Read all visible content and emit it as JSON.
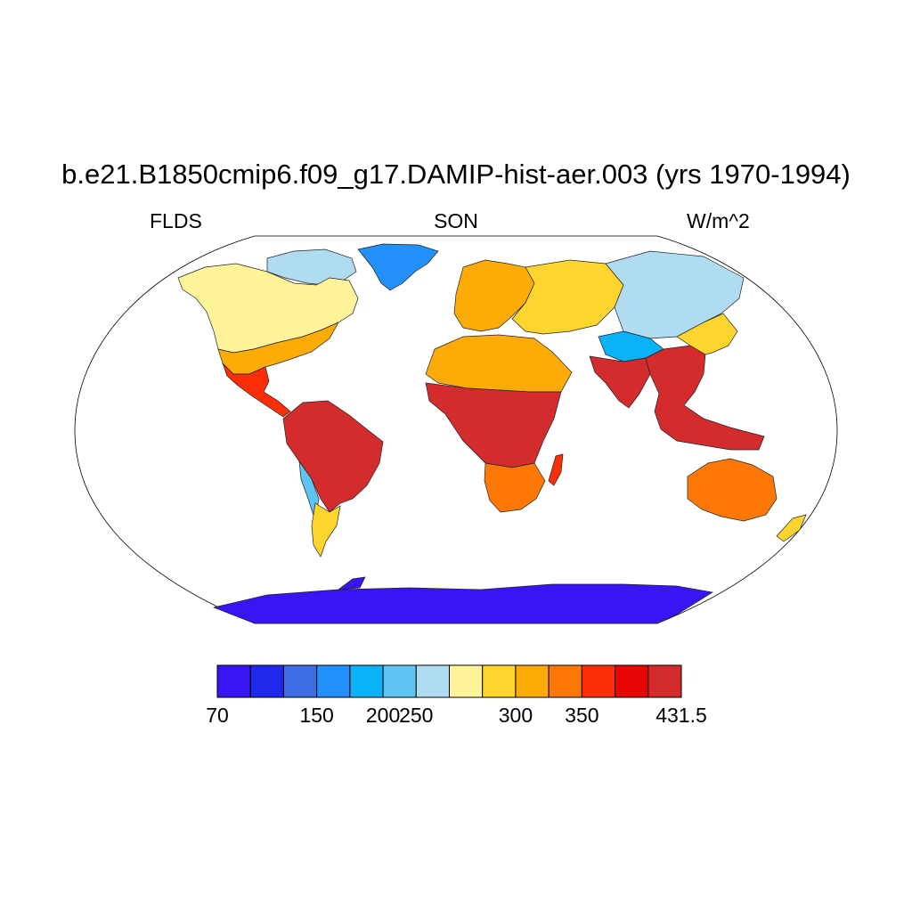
{
  "header": {
    "title": "b.e21.B1850cmip6.f09_g17.DAMIP-hist-aer.003 (yrs 1970-1994)",
    "left_label": "FLDS",
    "center_label": "SON",
    "right_label": "W/m^2"
  },
  "colorbar": {
    "colors": [
      "#3a14f2",
      "#1e29ec",
      "#3e6ce2",
      "#2290f8",
      "#0ab2f8",
      "#60c4f2",
      "#b0dcf2",
      "#fff49a",
      "#fed52e",
      "#fdab07",
      "#fd7807",
      "#fb2e08",
      "#e70505",
      "#d42c2c"
    ],
    "labels": [
      {
        "text": "70",
        "boundary": 0
      },
      {
        "text": "150",
        "boundary": 3
      },
      {
        "text": "200",
        "boundary": 5
      },
      {
        "text": "250",
        "boundary": 6
      },
      {
        "text": "300",
        "boundary": 9
      },
      {
        "text": "350",
        "boundary": 11
      },
      {
        "text": "431.5",
        "boundary": 14
      }
    ]
  },
  "map": {
    "projection": "robinson",
    "ocean_fill": "#ffffff",
    "regions": [
      {
        "name": "greenland",
        "color": "#2290f8"
      },
      {
        "name": "arctic-canada",
        "color": "#b0dcf2"
      },
      {
        "name": "north-america",
        "color": "#fff49a"
      },
      {
        "name": "usa-south",
        "color": "#fdab07"
      },
      {
        "name": "central-america",
        "color": "#fb2e08"
      },
      {
        "name": "south-america",
        "color": "#d42c2c"
      },
      {
        "name": "andes",
        "color": "#60c4f2"
      },
      {
        "name": "patagonia",
        "color": "#fed52e"
      },
      {
        "name": "europe",
        "color": "#fdab07"
      },
      {
        "name": "siberia",
        "color": "#b0dcf2"
      },
      {
        "name": "russia-west",
        "color": "#fed52e"
      },
      {
        "name": "tibet",
        "color": "#0ab2f8"
      },
      {
        "name": "africa-north",
        "color": "#fdab07"
      },
      {
        "name": "africa-central",
        "color": "#d42c2c"
      },
      {
        "name": "africa-south",
        "color": "#fd7807"
      },
      {
        "name": "india",
        "color": "#d42c2c"
      },
      {
        "name": "southeast-asia",
        "color": "#d42c2c"
      },
      {
        "name": "australia",
        "color": "#fd7807"
      },
      {
        "name": "antarctica",
        "color": "#3a14f2"
      }
    ]
  }
}
